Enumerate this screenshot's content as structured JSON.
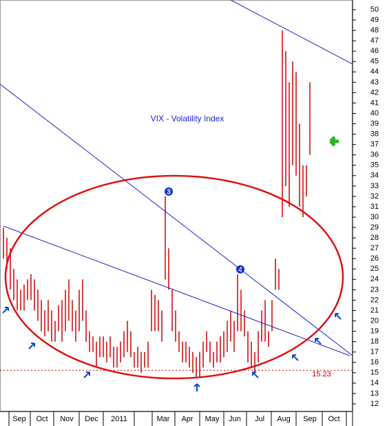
{
  "chart_data": {
    "type": "range-bar",
    "title": "VIX - Volatility Index",
    "x_labels": [
      "Sep",
      "Oct",
      "Nov",
      "Dec",
      "2011",
      "Mar",
      "Apr",
      "May",
      "Jun",
      "Jul",
      "Aug",
      "Sep",
      "Oct"
    ],
    "series": [
      {
        "name": "High",
        "color": "#cc0000",
        "values": [
          29,
          28,
          27,
          25,
          24,
          23,
          23.5,
          24,
          24.5,
          24,
          23,
          22,
          21,
          22,
          21,
          20,
          21.5,
          22,
          23,
          24,
          22,
          21,
          23,
          24,
          21,
          19,
          18.5,
          18,
          18.5,
          18.5,
          18,
          18.5,
          17.5,
          17.5,
          18,
          19,
          20,
          19,
          17,
          17.5,
          17,
          17,
          18,
          23,
          22.5,
          22,
          21,
          32,
          27,
          23,
          21,
          19,
          18,
          18,
          17.5,
          17,
          16.5,
          17,
          18,
          19,
          18,
          17,
          18,
          18.5,
          19,
          20,
          21,
          20,
          24.5,
          23,
          21,
          19,
          18,
          17,
          19,
          21,
          22,
          19,
          22,
          26,
          25,
          48,
          46,
          43,
          45,
          44,
          39,
          35,
          35,
          43
        ]
      },
      {
        "name": "Low",
        "color": "#cc0000",
        "values": [
          26,
          25,
          23,
          22,
          21,
          21,
          21,
          22,
          22,
          21,
          20,
          19,
          18.5,
          19,
          18,
          18,
          19,
          18,
          19,
          20,
          19,
          18,
          19,
          20,
          18,
          17,
          17,
          15.5,
          16.5,
          16.5,
          16,
          16.5,
          15.5,
          15.5,
          16,
          16.5,
          17,
          16.5,
          15.5,
          15.5,
          15,
          15.5,
          15.5,
          19,
          19,
          19,
          18,
          24,
          23,
          19,
          18,
          17,
          16,
          16,
          15.5,
          15,
          14.5,
          14.5,
          15.5,
          17,
          16,
          15.5,
          16,
          16,
          16.5,
          17,
          18,
          17,
          19,
          19,
          18.5,
          16,
          15.5,
          15,
          16,
          18,
          18,
          17.5,
          19,
          23,
          23,
          30,
          33,
          31,
          35,
          34,
          31,
          30,
          32,
          36
        ]
      }
    ],
    "ylim": [
      11.33,
      50.93
    ],
    "yticks": [
      12,
      13,
      14,
      15,
      16,
      17,
      18,
      19,
      20,
      21,
      22,
      23,
      24,
      25,
      26,
      27,
      28,
      29,
      30,
      31,
      32,
      33,
      34,
      35,
      36,
      37,
      38,
      39,
      40,
      41,
      42,
      43,
      44,
      45,
      46,
      47,
      48,
      49,
      50
    ],
    "support_line": {
      "value": 15.23,
      "label": "15.23",
      "color": "#cc0000"
    },
    "markers": [
      {
        "label": "3",
        "value": 32
      },
      {
        "label": "4",
        "value": 24.5
      }
    ]
  }
}
